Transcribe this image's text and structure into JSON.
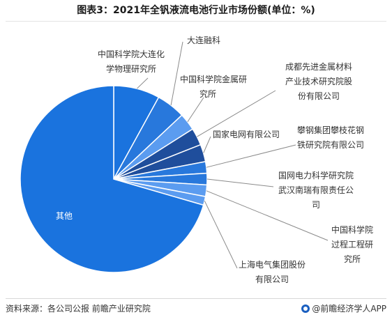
{
  "title": "图表3：2021年全钒液流电池行业市场份额(单位：%)",
  "source": "资料来源：各公司公报 前瞻产业研究院",
  "brand": "@前瞻经济学人APP",
  "colors": {
    "large": "#1a73de",
    "medium": "#2878dc",
    "light": "#5b9cf0",
    "dark": "#1f4e9c",
    "leader": "#8a8a8a"
  },
  "chart_data": {
    "type": "pie",
    "title": "图表3：2021年全钒液流电池行业市场份额(单位：%)",
    "categories": [
      "中国科学院大连化学物理研究所",
      "大连融科",
      "中国科学院金属研究所",
      "成都先进金属材料产业技术研究院股份有限公司",
      "国家电网有限公司",
      "攀钢集团攀枝花钢铁研究院有限公司",
      "国网电力科学研究院武汉南瑞有限责任公司",
      "中国科学院过程工程研究所",
      "上海电气集团股份有限公司",
      "其他"
    ],
    "values": [
      8,
      5,
      3,
      3,
      3,
      2,
      2,
      2,
      1.5,
      70.5
    ],
    "colors": [
      "#1a73de",
      "#2878dc",
      "#5b9cf0",
      "#1f4e9c",
      "#1f4e9c",
      "#2878dc",
      "#2878dc",
      "#5b9cf0",
      "#5b9cf0",
      "#1a73de"
    ],
    "labels": {
      "dalian_chem": [
        "中国科学院大连化",
        "学物理研究所"
      ],
      "rongke": [
        "大连融科"
      ],
      "metal": [
        "中国科学院金属研",
        "究所"
      ],
      "chengdu": [
        "成都先进金属材料",
        "产业技术研究院股",
        "份有限公司"
      ],
      "grid": [
        "国家电网有限公司"
      ],
      "pangang": [
        "攀钢集团攀枝花钢",
        "铁研究院有限公司"
      ],
      "nari": [
        "国网电力科学研究院",
        "武汉南瑞有限责任公",
        "司"
      ],
      "process": [
        "中国科学院",
        "过程工程研",
        "究所"
      ],
      "shanghai": [
        "上海电气集团股份",
        "有限公司"
      ],
      "other": [
        "其他"
      ]
    }
  }
}
